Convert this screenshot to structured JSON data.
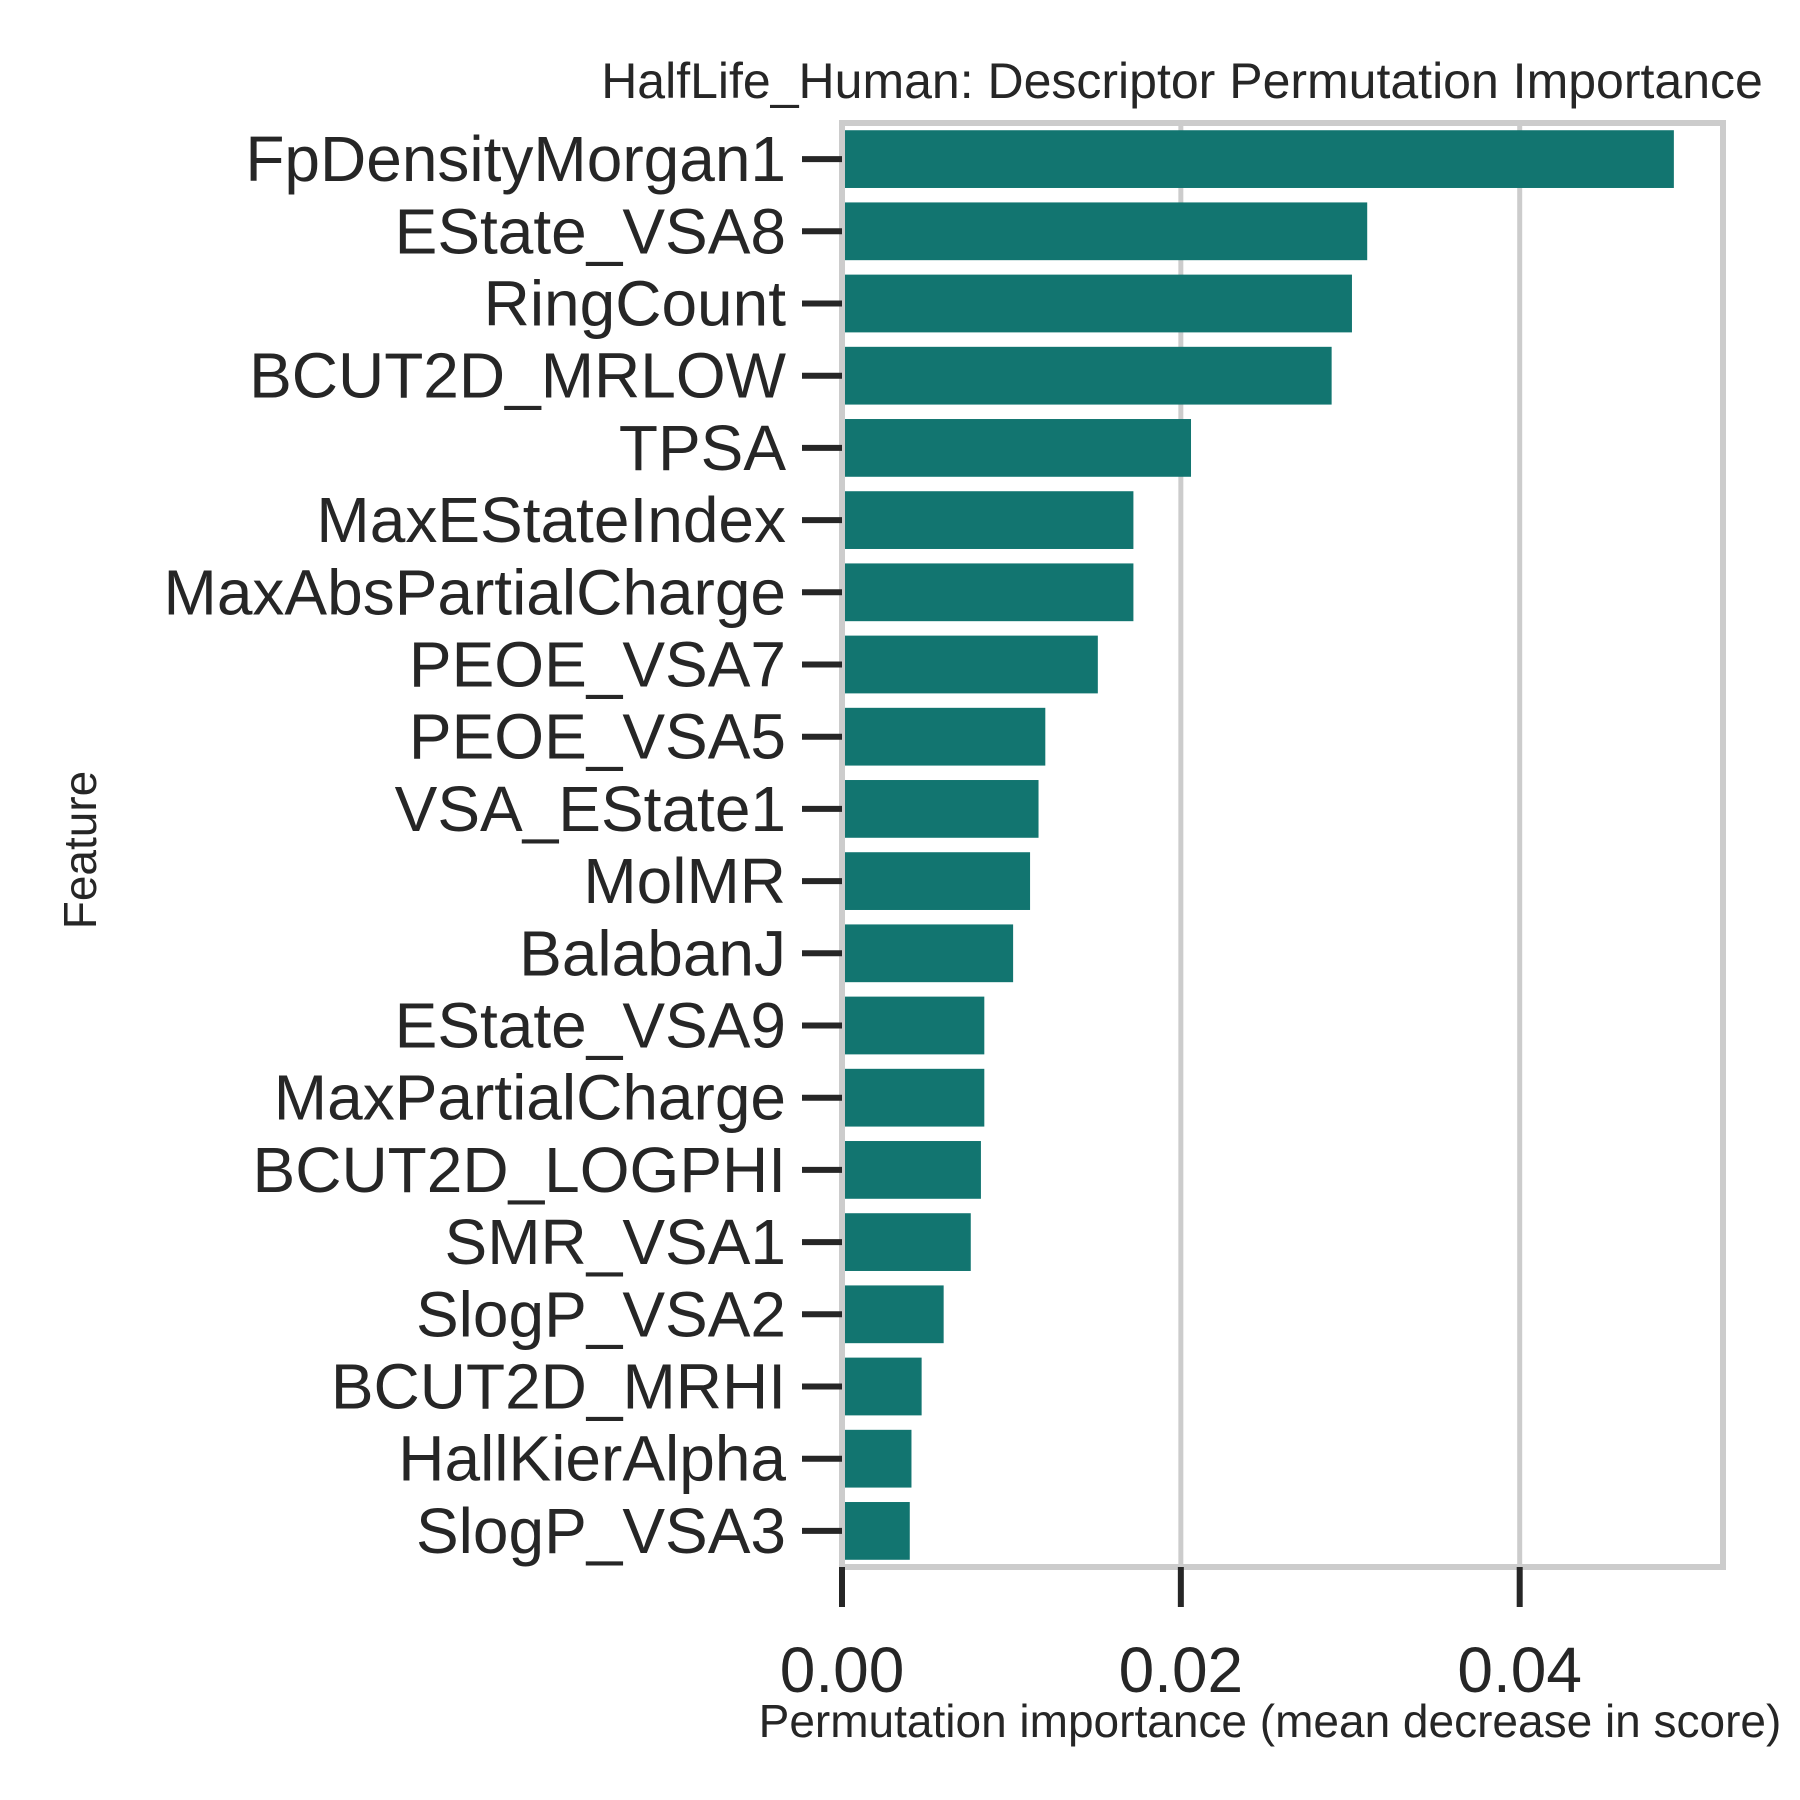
{
  "chart_data": {
    "type": "bar",
    "orientation": "horizontal",
    "title": "HalfLife_Human: Descriptor Permutation Importance",
    "xlabel": "Permutation importance (mean decrease in score)",
    "ylabel": "Feature",
    "xlim": [
      0,
      0.052
    ],
    "xticks": [
      0.0,
      0.02,
      0.04
    ],
    "xtick_labels": [
      "0.00",
      "0.02",
      "0.04"
    ],
    "grid": "vertical",
    "bar_color": "#127570",
    "categories": [
      "FpDensityMorgan1",
      "EState_VSA8",
      "RingCount",
      "BCUT2D_MRLOW",
      "TPSA",
      "MaxEStateIndex",
      "MaxAbsPartialCharge",
      "PEOE_VSA7",
      "PEOE_VSA5",
      "VSA_EState1",
      "MolMR",
      "BalabanJ",
      "EState_VSA9",
      "MaxPartialCharge",
      "BCUT2D_LOGPHI",
      "SMR_VSA1",
      "SlogP_VSA2",
      "BCUT2D_MRHI",
      "HallKierAlpha",
      "SlogP_VSA3"
    ],
    "values": [
      0.0491,
      0.031,
      0.0301,
      0.0289,
      0.0206,
      0.0172,
      0.0172,
      0.0151,
      0.012,
      0.0116,
      0.0111,
      0.0101,
      0.0084,
      0.0084,
      0.0082,
      0.0076,
      0.006,
      0.0047,
      0.0041,
      0.004
    ]
  }
}
